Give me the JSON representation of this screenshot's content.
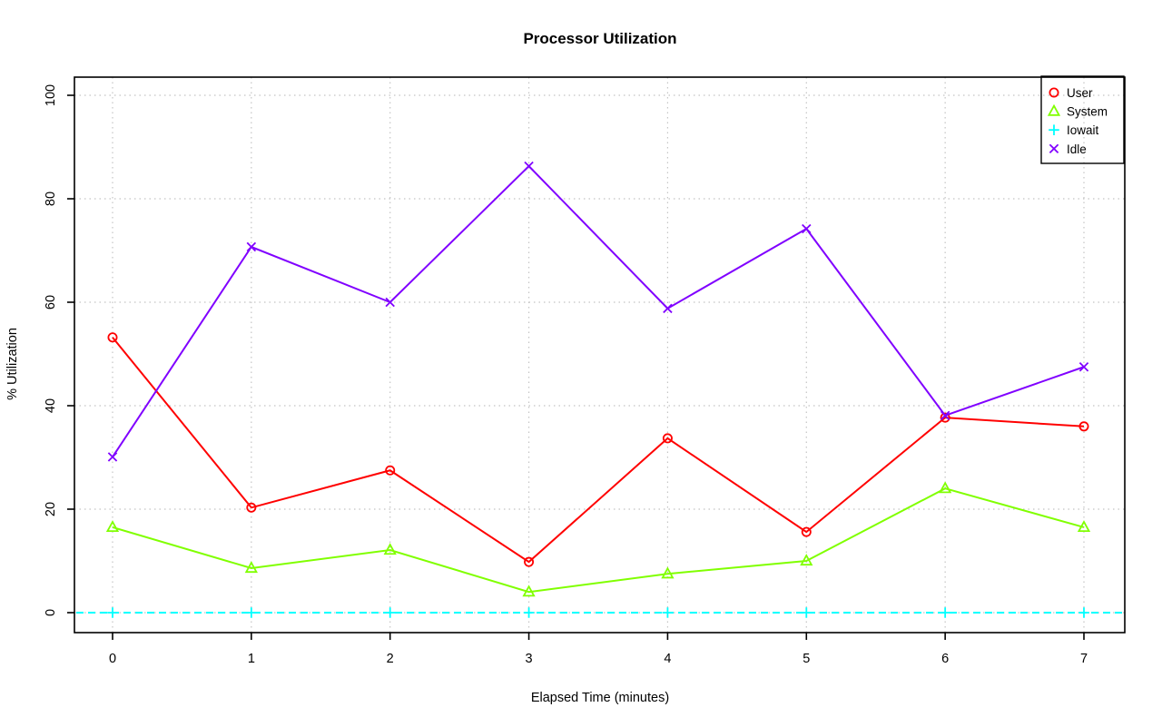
{
  "chart_data": {
    "type": "line",
    "title": "Processor Utilization",
    "xlabel": "Elapsed Time (minutes)",
    "ylabel": "% Utilization",
    "x": [
      0,
      1,
      2,
      3,
      4,
      5,
      6,
      7
    ],
    "x_ticks": [
      "0",
      "1",
      "2",
      "3",
      "4",
      "5",
      "6",
      "7"
    ],
    "y_ticks": [
      "0",
      "20",
      "40",
      "60",
      "80",
      "100"
    ],
    "y_tick_values": [
      0,
      20,
      40,
      60,
      80,
      100
    ],
    "xlim": [
      0,
      7
    ],
    "ylim": [
      0,
      100
    ],
    "grid": "dotted",
    "grid_color": "#c4c4c4",
    "axis_color": "#000000",
    "legend_position": "top-right",
    "series": [
      {
        "name": "User",
        "color": "#FF0000",
        "marker": "circle",
        "line": "solid",
        "line_span": "data",
        "values": [
          53.2,
          20.3,
          27.5,
          9.8,
          33.7,
          15.6,
          37.7,
          36.0
        ]
      },
      {
        "name": "System",
        "color": "#80FF00",
        "marker": "triangle",
        "line": "solid",
        "line_span": "data",
        "values": [
          16.5,
          8.6,
          12.1,
          4.0,
          7.5,
          10.0,
          24.0,
          16.5
        ]
      },
      {
        "name": "Iowait",
        "color": "#00FFFF",
        "marker": "plus",
        "line": "dashed",
        "line_span": "plot",
        "values": [
          0,
          0,
          0,
          0,
          0,
          0,
          0,
          0
        ]
      },
      {
        "name": "Idle",
        "color": "#8000FF",
        "marker": "x",
        "line": "solid",
        "line_span": "data",
        "values": [
          30.1,
          70.7,
          60.0,
          86.3,
          58.8,
          74.2,
          38.1,
          47.5
        ]
      }
    ]
  }
}
